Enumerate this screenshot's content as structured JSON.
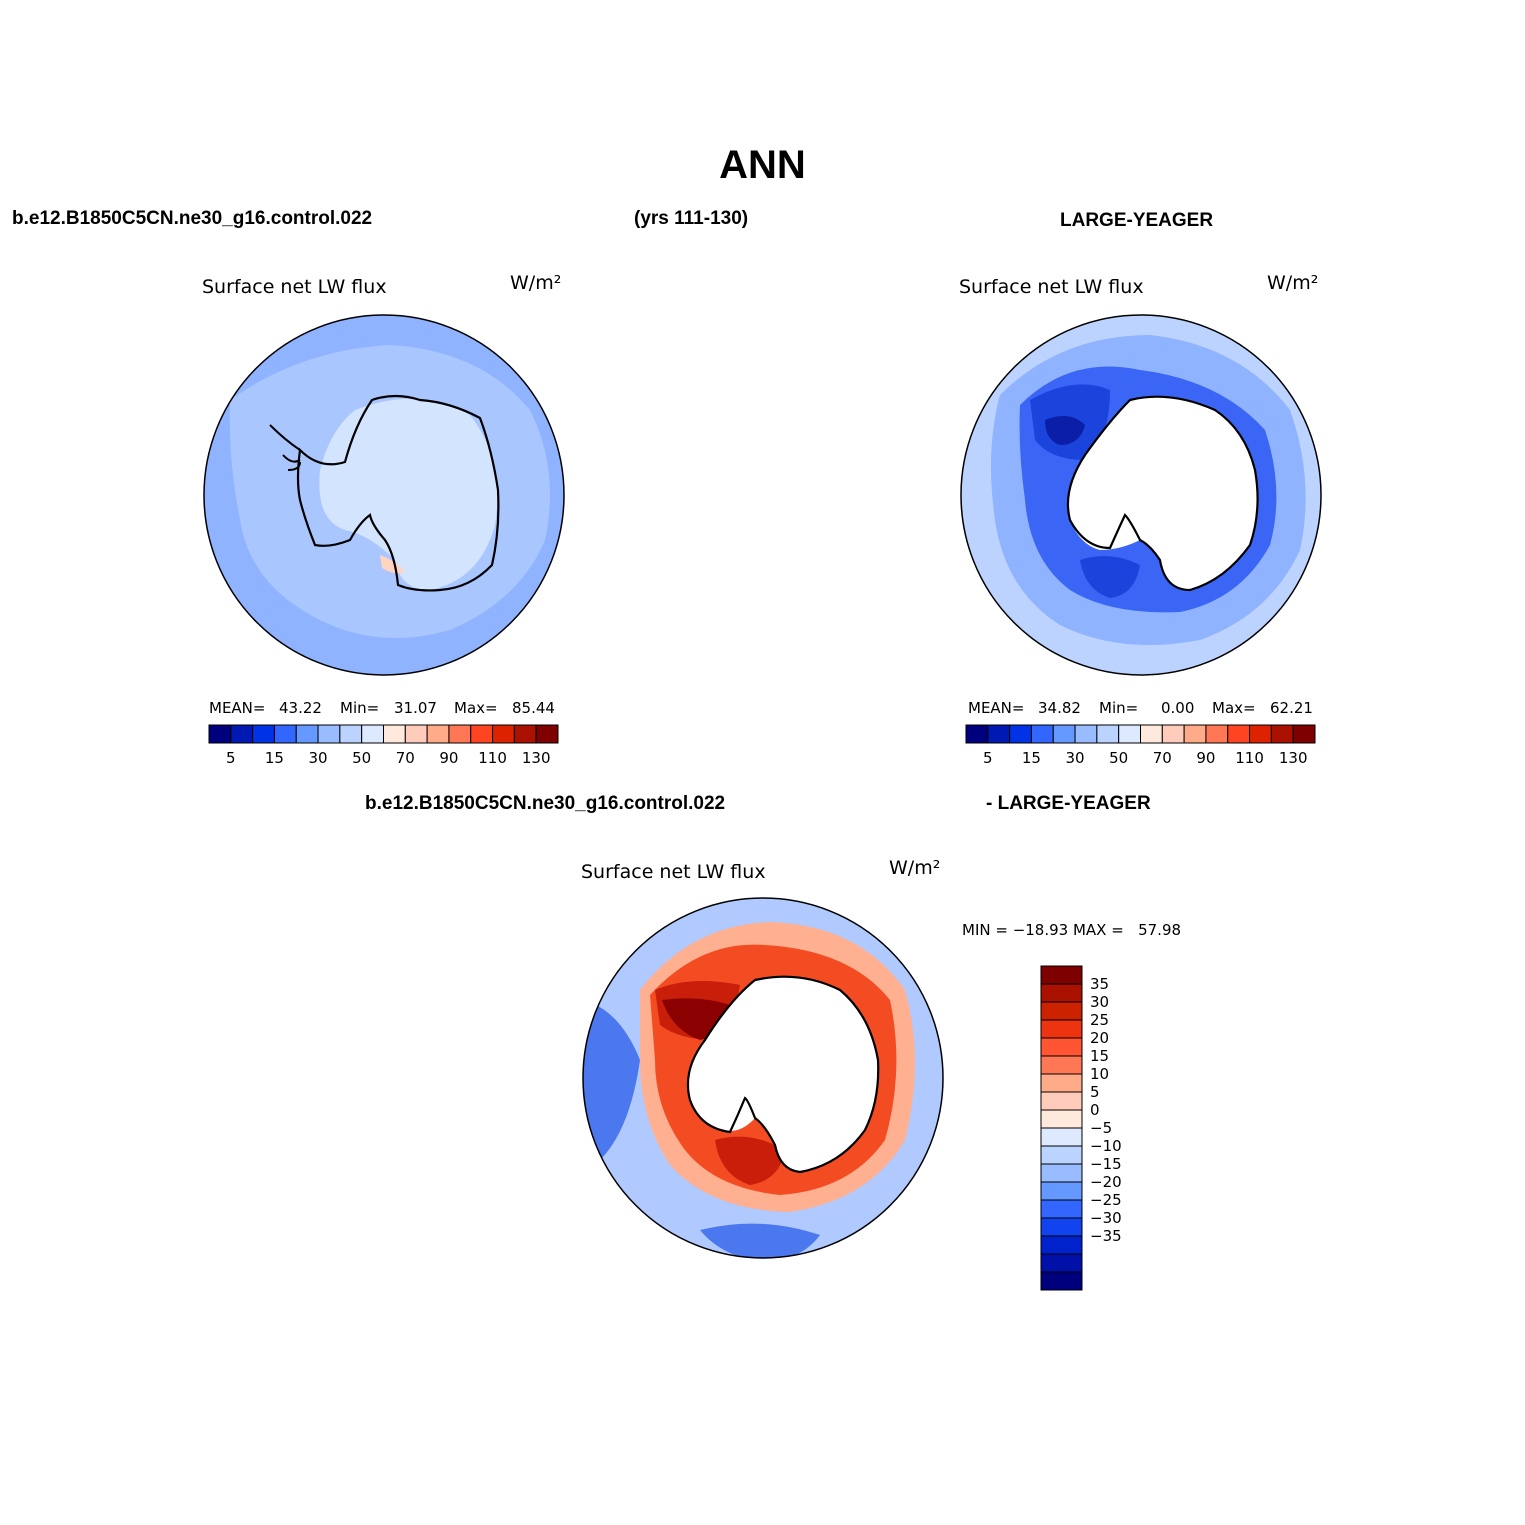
{
  "page": {
    "title": "ANN",
    "case_label": "b.e12.B1850C5CN.ne30_g16.control.022",
    "years_label": "(yrs 111-130)",
    "obs_label": "LARGE-YEAGER",
    "diff_case_label": "b.e12.B1850C5CN.ne30_g16.control.022",
    "diff_obs_label": "- LARGE-YEAGER"
  },
  "panels": [
    {
      "variable": "Surface net LW flux",
      "units": "W/m²",
      "mean_label": "MEAN=",
      "mean_value": "43.22",
      "min_label": "Min=",
      "min_value": "31.07",
      "max_label": "Max=",
      "max_value": "85.44"
    },
    {
      "variable": "Surface net LW flux",
      "units": "W/m²",
      "mean_label": "MEAN=",
      "mean_value": "34.82",
      "min_label": "Min=",
      "min_value": "0.00",
      "max_label": "Max=",
      "max_value": "62.21"
    },
    {
      "variable": "Surface net LW flux",
      "units": "W/m²",
      "minmax_text": "MIN = −18.93 MAX =   57.98"
    }
  ],
  "colorbars": {
    "abs_colors": [
      "#00007f",
      "#0019b3",
      "#0033e6",
      "#3366ff",
      "#6699ff",
      "#99bbff",
      "#bbd3ff",
      "#dde9ff",
      "#ffe9dd",
      "#ffccbb",
      "#ffaa88",
      "#ff7755",
      "#ff4422",
      "#dd2200",
      "#aa1100",
      "#7f0000"
    ],
    "abs_ticks": [
      "5",
      "15",
      "30",
      "50",
      "70",
      "90",
      "110",
      "130"
    ],
    "diff_colors": [
      "#7f0000",
      "#aa1100",
      "#cc2200",
      "#ee3311",
      "#ff5533",
      "#ff7755",
      "#ffaa88",
      "#ffccbb",
      "#ffe9dd",
      "#dde9ff",
      "#bbd3ff",
      "#99bbff",
      "#6699ff",
      "#3366ff",
      "#1144ee",
      "#0022cc",
      "#0011aa",
      "#00007f"
    ],
    "diff_ticks": [
      "35",
      "30",
      "25",
      "20",
      "15",
      "10",
      "5",
      "0",
      "−5",
      "−10",
      "−15",
      "−20",
      "−25",
      "−30",
      "−35"
    ]
  },
  "map_colors": {
    "ocean_a": "#8fb3ff",
    "ocean_b": "#aac6ff",
    "ice_a": "#d3e4ff",
    "land_white": "#ffffff",
    "obs_deep": "#3b66f5",
    "obs_darker": "#1b44dd",
    "obs_darkest": "#0a1ea8",
    "obs_outer": "#bcd3ff",
    "diff_red1": "#f34b22",
    "diff_red2": "#c81e0a",
    "diff_red3": "#8b0000",
    "diff_ring": "#ffb090",
    "diff_blue": "#4b78ee",
    "diff_lightblue": "#b0c9ff",
    "coast": "#000000"
  }
}
